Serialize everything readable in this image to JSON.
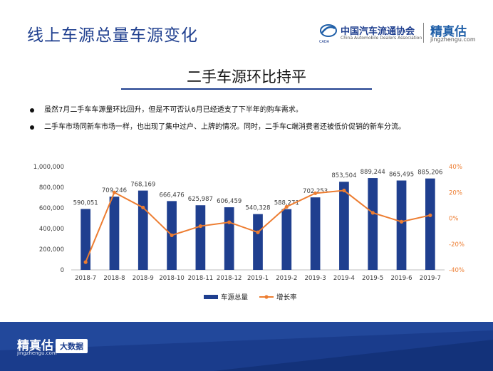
{
  "header": {
    "title": "线上车源总量车源变化",
    "org_name_cn": "中国汽车流通协会",
    "org_name_en": "China Automobile Dealers Association",
    "org_mark": "CADA",
    "brand_name": "精真估",
    "brand_url": "jingzhengu.com"
  },
  "section_title": "二手车源环比持平",
  "bullets": [
    "虽然7月二手车车源量环比回升，但是不可否认6月已经透支了下半年的购车需求。",
    "二手车市场同新车市场一样，也出现了集中过户、上牌的情况。同时，二手车C端消费者还被低价促销的新车分流。"
  ],
  "chart_data": {
    "type": "bar",
    "categories": [
      "2018-7",
      "2018-8",
      "2018-9",
      "2018-10",
      "2018-11",
      "2018-12",
      "2019-1",
      "2019-2",
      "2019-3",
      "2019-4",
      "2019-5",
      "2019-6",
      "2019-7"
    ],
    "series": [
      {
        "name": "车源总量",
        "type": "bar",
        "axis": "left",
        "values": [
          590051,
          709246,
          768169,
          666476,
          625987,
          606459,
          540328,
          588271,
          702253,
          853504,
          889244,
          865495,
          885206
        ],
        "labels": [
          "590,051",
          "709,246",
          "768,169",
          "666,476",
          "625,987",
          "606,459",
          "540,328",
          "588,271",
          "702,253",
          "853,504",
          "889,244",
          "865,495",
          "885,206"
        ]
      },
      {
        "name": "增长率",
        "type": "line",
        "axis": "right",
        "values": [
          -34,
          20,
          8.3,
          -13.2,
          -6.1,
          -3.1,
          -10.9,
          8.9,
          19.4,
          21.5,
          4.2,
          -2.7,
          2.3
        ]
      }
    ],
    "y_left": {
      "min": 0,
      "max": 1000000,
      "ticks": [
        "1,000,000",
        "800,000",
        "600,000",
        "400,000",
        "200,000",
        "0"
      ]
    },
    "y_right": {
      "min": -40,
      "max": 40,
      "ticks": [
        "40%",
        "20%",
        "0%",
        "-20%",
        "-40%"
      ]
    },
    "colors": {
      "bar": "#1f3f8f",
      "line": "#ed7d31",
      "right_axis_text": "#ed7d31",
      "left_axis_text": "#404040"
    },
    "legend": [
      "车源总量",
      "增长率"
    ],
    "legend_position": "bottom"
  },
  "footer": {
    "brand_name": "精真估",
    "brand_url": "jingzhengu.com",
    "badge": "大数据"
  }
}
